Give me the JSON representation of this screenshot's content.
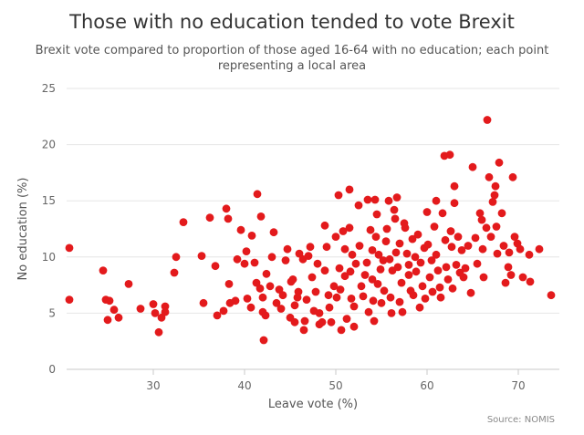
{
  "chart_data": {
    "type": "scatter",
    "title": "Those with no education tended to vote Brexit",
    "subtitle": "Brexit vote compared to proportion of those aged 16-64 with no education; each point representing a local area",
    "xlabel": "Leave vote (%)",
    "ylabel": "No education (%)",
    "xlim": [
      20.5,
      74.5
    ],
    "ylim": [
      0,
      25
    ],
    "xticks": [
      30,
      40,
      50,
      60,
      70
    ],
    "yticks": [
      0,
      5,
      10,
      15,
      20,
      25
    ],
    "grid": "horizontal",
    "point_color": "#e31a1c",
    "source": "Source: NOMIS",
    "points": [
      [
        20.8,
        10.8
      ],
      [
        20.8,
        6.2
      ],
      [
        24.5,
        8.8
      ],
      [
        24.8,
        6.2
      ],
      [
        25.0,
        4.4
      ],
      [
        25.2,
        6.1
      ],
      [
        25.7,
        5.3
      ],
      [
        26.2,
        4.6
      ],
      [
        27.3,
        7.6
      ],
      [
        28.6,
        5.4
      ],
      [
        30.0,
        5.8
      ],
      [
        30.2,
        5.0
      ],
      [
        30.6,
        3.3
      ],
      [
        30.9,
        4.6
      ],
      [
        31.3,
        5.6
      ],
      [
        31.3,
        5.1
      ],
      [
        32.3,
        8.6
      ],
      [
        32.5,
        10.0
      ],
      [
        33.3,
        13.1
      ],
      [
        35.3,
        10.1
      ],
      [
        35.5,
        5.9
      ],
      [
        36.2,
        13.5
      ],
      [
        36.8,
        9.2
      ],
      [
        37.0,
        4.8
      ],
      [
        37.7,
        5.2
      ],
      [
        38.0,
        14.3
      ],
      [
        38.2,
        13.4
      ],
      [
        38.3,
        7.6
      ],
      [
        38.4,
        5.9
      ],
      [
        39.0,
        6.1
      ],
      [
        39.2,
        9.8
      ],
      [
        39.6,
        12.4
      ],
      [
        40.0,
        9.4
      ],
      [
        40.2,
        10.5
      ],
      [
        40.3,
        6.3
      ],
      [
        40.7,
        5.5
      ],
      [
        40.8,
        11.9
      ],
      [
        41.1,
        9.5
      ],
      [
        41.3,
        7.7
      ],
      [
        41.4,
        15.6
      ],
      [
        41.8,
        13.6
      ],
      [
        41.7,
        7.2
      ],
      [
        42.0,
        6.4
      ],
      [
        42.0,
        5.1
      ],
      [
        42.1,
        2.6
      ],
      [
        42.3,
        4.8
      ],
      [
        42.4,
        8.5
      ],
      [
        42.8,
        7.4
      ],
      [
        43.0,
        10.0
      ],
      [
        43.2,
        12.2
      ],
      [
        43.5,
        5.9
      ],
      [
        43.8,
        7.1
      ],
      [
        44.0,
        5.4
      ],
      [
        44.2,
        6.6
      ],
      [
        44.5,
        9.7
      ],
      [
        44.7,
        10.7
      ],
      [
        45.0,
        4.6
      ],
      [
        45.1,
        7.8
      ],
      [
        45.3,
        8.0
      ],
      [
        45.5,
        5.7
      ],
      [
        45.5,
        4.2
      ],
      [
        45.8,
        6.4
      ],
      [
        45.9,
        6.9
      ],
      [
        46.0,
        10.3
      ],
      [
        46.4,
        9.8
      ],
      [
        46.5,
        3.5
      ],
      [
        46.6,
        4.3
      ],
      [
        46.8,
        6.2
      ],
      [
        47.0,
        10.1
      ],
      [
        47.2,
        10.9
      ],
      [
        47.4,
        8.2
      ],
      [
        47.6,
        5.2
      ],
      [
        47.8,
        6.9
      ],
      [
        48.0,
        9.4
      ],
      [
        48.2,
        5.0
      ],
      [
        48.2,
        4.0
      ],
      [
        48.5,
        4.2
      ],
      [
        48.8,
        8.8
      ],
      [
        48.8,
        12.8
      ],
      [
        49.0,
        10.9
      ],
      [
        49.2,
        6.6
      ],
      [
        49.3,
        5.5
      ],
      [
        49.5,
        4.2
      ],
      [
        49.8,
        7.4
      ],
      [
        50.0,
        11.8
      ],
      [
        50.1,
        6.4
      ],
      [
        50.3,
        15.5
      ],
      [
        50.4,
        9.0
      ],
      [
        50.5,
        7.1
      ],
      [
        50.6,
        3.5
      ],
      [
        50.8,
        12.3
      ],
      [
        51.0,
        10.7
      ],
      [
        51.0,
        8.3
      ],
      [
        51.2,
        4.5
      ],
      [
        51.5,
        16.0
      ],
      [
        51.5,
        12.6
      ],
      [
        51.6,
        8.7
      ],
      [
        51.7,
        6.3
      ],
      [
        51.8,
        10.2
      ],
      [
        52.0,
        5.6
      ],
      [
        52.0,
        3.8
      ],
      [
        52.2,
        9.4
      ],
      [
        52.5,
        14.6
      ],
      [
        52.6,
        11.0
      ],
      [
        52.8,
        7.4
      ],
      [
        53.0,
        6.5
      ],
      [
        53.2,
        8.4
      ],
      [
        53.4,
        9.5
      ],
      [
        53.5,
        15.1
      ],
      [
        53.6,
        5.1
      ],
      [
        53.8,
        12.4
      ],
      [
        54.0,
        10.6
      ],
      [
        54.0,
        8.0
      ],
      [
        54.1,
        6.1
      ],
      [
        54.2,
        4.3
      ],
      [
        54.3,
        15.1
      ],
      [
        54.4,
        11.8
      ],
      [
        54.5,
        13.8
      ],
      [
        54.6,
        7.6
      ],
      [
        54.7,
        10.2
      ],
      [
        54.9,
        8.9
      ],
      [
        55.0,
        5.9
      ],
      [
        55.2,
        9.7
      ],
      [
        55.3,
        7.0
      ],
      [
        55.5,
        11.4
      ],
      [
        55.6,
        12.5
      ],
      [
        55.8,
        15.0
      ],
      [
        55.9,
        9.8
      ],
      [
        56.0,
        6.4
      ],
      [
        56.1,
        5.0
      ],
      [
        56.2,
        8.8
      ],
      [
        56.4,
        14.2
      ],
      [
        56.5,
        13.4
      ],
      [
        56.6,
        10.4
      ],
      [
        56.7,
        15.3
      ],
      [
        56.8,
        9.1
      ],
      [
        57.0,
        11.2
      ],
      [
        57.0,
        6.0
      ],
      [
        57.2,
        7.7
      ],
      [
        57.3,
        5.1
      ],
      [
        57.5,
        13.0
      ],
      [
        57.6,
        12.6
      ],
      [
        57.8,
        10.3
      ],
      [
        58.0,
        8.4
      ],
      [
        58.0,
        9.3
      ],
      [
        58.2,
        7.0
      ],
      [
        58.4,
        11.6
      ],
      [
        58.5,
        6.6
      ],
      [
        58.7,
        10.0
      ],
      [
        58.8,
        8.7
      ],
      [
        59.0,
        12.0
      ],
      [
        59.2,
        5.5
      ],
      [
        59.3,
        9.5
      ],
      [
        59.5,
        7.4
      ],
      [
        59.7,
        10.8
      ],
      [
        59.8,
        6.3
      ],
      [
        60.0,
        14.0
      ],
      [
        60.1,
        11.1
      ],
      [
        60.3,
        8.2
      ],
      [
        60.5,
        9.7
      ],
      [
        60.6,
        6.9
      ],
      [
        60.8,
        12.7
      ],
      [
        61.0,
        15.0
      ],
      [
        61.0,
        10.2
      ],
      [
        61.2,
        8.8
      ],
      [
        61.4,
        7.3
      ],
      [
        61.5,
        6.4
      ],
      [
        61.7,
        13.9
      ],
      [
        61.9,
        19.0
      ],
      [
        62.0,
        11.5
      ],
      [
        62.1,
        9.1
      ],
      [
        62.3,
        8.0
      ],
      [
        62.5,
        19.1
      ],
      [
        62.6,
        12.3
      ],
      [
        62.7,
        10.9
      ],
      [
        62.8,
        7.2
      ],
      [
        63.0,
        14.8
      ],
      [
        63.0,
        16.3
      ],
      [
        63.2,
        9.3
      ],
      [
        63.4,
        11.8
      ],
      [
        63.6,
        8.6
      ],
      [
        63.8,
        10.6
      ],
      [
        64.0,
        8.2
      ],
      [
        64.2,
        9.0
      ],
      [
        64.5,
        11.0
      ],
      [
        64.8,
        6.8
      ],
      [
        65.0,
        18.0
      ],
      [
        65.3,
        11.7
      ],
      [
        65.5,
        9.4
      ],
      [
        65.8,
        13.9
      ],
      [
        66.0,
        13.3
      ],
      [
        66.1,
        10.7
      ],
      [
        66.2,
        8.2
      ],
      [
        66.5,
        12.6
      ],
      [
        66.6,
        22.2
      ],
      [
        66.8,
        17.1
      ],
      [
        67.0,
        11.8
      ],
      [
        67.2,
        14.9
      ],
      [
        67.4,
        15.5
      ],
      [
        67.5,
        16.3
      ],
      [
        67.6,
        12.7
      ],
      [
        67.7,
        10.3
      ],
      [
        67.9,
        18.4
      ],
      [
        68.2,
        13.9
      ],
      [
        68.4,
        11.0
      ],
      [
        68.6,
        7.7
      ],
      [
        68.9,
        9.1
      ],
      [
        69.0,
        10.4
      ],
      [
        69.2,
        8.4
      ],
      [
        69.4,
        17.1
      ],
      [
        69.6,
        11.8
      ],
      [
        69.9,
        11.2
      ],
      [
        70.2,
        10.7
      ],
      [
        70.5,
        8.2
      ],
      [
        71.2,
        10.2
      ],
      [
        71.3,
        7.8
      ],
      [
        72.3,
        10.7
      ],
      [
        73.6,
        6.6
      ]
    ]
  }
}
